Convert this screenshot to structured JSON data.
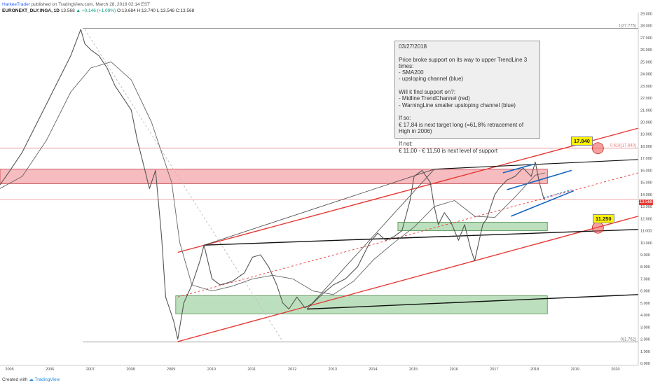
{
  "header": {
    "author": "HarkeeTrader",
    "published": "published on TradingView.com, March 28, 2018 02:14 EST",
    "symbol": "EURONEXT_DLY:INGA, 1D",
    "last": "13.568",
    "change": "▲ +0.146 (+1.09%)",
    "ohlc": "O:13.684 H:13.740 L:13.546 C:13.568"
  },
  "footer": {
    "created_with": "Created with",
    "brand": "TradingView"
  },
  "note": {
    "lines": [
      "03/27/2018",
      "",
      "Price broke support on its way to upper TrendLine 3 times:",
      "- SMA200",
      "- upsloping channel (blue)",
      "",
      "Will it find support on?:",
      "- Midline TrendChannel (red)",
      "- WarningLine smaller upsloping channel (blue)",
      "",
      "If so:",
      "€ 17,84 is next target long (=61,8% retracement of High in 2006)",
      "",
      "If not:",
      "€ 11,00 - € 11,50 is next level of support"
    ]
  },
  "flags": {
    "target_high": "17.840",
    "target_low": "11.250"
  },
  "price_tag": "13.568",
  "fib_labels": {
    "top": "1(27.775)",
    "fib618": "0.618(17.840)",
    "bottom": "0(1.762)"
  },
  "colors": {
    "red_channel": "#e53935",
    "blue_channel": "#1565c0",
    "black_lines": "#111111",
    "red_zone": "#f4a6a9",
    "green_zone": "#a5d6a7",
    "price": "#555555",
    "sma": "#666666"
  },
  "chart_data": {
    "type": "line",
    "title": "",
    "xlabel": "",
    "ylabel": "",
    "x_ticks": [
      "2005",
      "2006",
      "2007",
      "2008",
      "2009",
      "2010",
      "2011",
      "2012",
      "2013",
      "2014",
      "2015",
      "2016",
      "2017",
      "2018",
      "2019",
      "2020"
    ],
    "y_ticks": [
      "29.000",
      "28.000",
      "27.000",
      "26.000",
      "25.000",
      "24.000",
      "23.000",
      "22.000",
      "21.000",
      "20.000",
      "19.000",
      "18.000",
      "17.000",
      "16.000",
      "15.000",
      "14.000",
      "13.000",
      "12.000",
      "11.000",
      "10.000",
      "9.000",
      "8.000",
      "7.000",
      "6.000",
      "5.000",
      "4.000",
      "3.000",
      "2.000",
      "1.000",
      "0.000"
    ],
    "ylim": [
      0,
      29
    ],
    "xlim": [
      2004.75,
      2020.55
    ],
    "price_series": {
      "name": "",
      "x": [
        2004.75,
        2005.0,
        2005.3,
        2005.6,
        2005.9,
        2006.2,
        2006.5,
        2006.75,
        2006.85,
        2007.0,
        2007.2,
        2007.4,
        2007.6,
        2007.8,
        2008.0,
        2008.15,
        2008.3,
        2008.45,
        2008.6,
        2008.75,
        2008.85,
        2008.95,
        2009.05,
        2009.15,
        2009.3,
        2009.5,
        2009.7,
        2009.8,
        2010.0,
        2010.2,
        2010.5,
        2010.8,
        2011.0,
        2011.2,
        2011.4,
        2011.6,
        2011.75,
        2011.9,
        2012.1,
        2012.3,
        2012.5,
        2012.75,
        2013.0,
        2013.3,
        2013.6,
        2013.9,
        2014.1,
        2014.3,
        2014.5,
        2014.7,
        2014.9,
        2015.0,
        2015.2,
        2015.4,
        2015.5,
        2015.6,
        2015.75,
        2015.9,
        2016.0,
        2016.1,
        2016.25,
        2016.4,
        2016.5,
        2016.6,
        2016.7,
        2016.8,
        2016.9,
        2017.0,
        2017.1,
        2017.3,
        2017.5,
        2017.7,
        2017.9,
        2018.0,
        2018.1,
        2018.2,
        2018.24
      ],
      "y": [
        14.8,
        16.0,
        17.5,
        19.5,
        21.5,
        23.5,
        25.5,
        27.7,
        26.5,
        26.0,
        25.5,
        24.5,
        23.0,
        22.0,
        21.0,
        18.5,
        16.5,
        14.5,
        16.0,
        10.5,
        5.5,
        4.5,
        3.5,
        2.0,
        5.0,
        6.5,
        8.5,
        9.8,
        7.0,
        6.5,
        6.8,
        7.5,
        8.8,
        9.0,
        8.0,
        6.5,
        5.0,
        4.5,
        5.5,
        4.6,
        5.0,
        5.8,
        6.5,
        7.0,
        8.0,
        10.0,
        10.8,
        10.2,
        10.5,
        11.0,
        13.5,
        15.5,
        16.0,
        15.0,
        13.0,
        11.5,
        12.5,
        11.8,
        11.0,
        10.2,
        11.5,
        9.5,
        8.5,
        10.0,
        11.5,
        12.0,
        13.0,
        14.0,
        14.5,
        15.2,
        15.5,
        16.2,
        15.5,
        16.7,
        15.0,
        13.8,
        13.568
      ]
    },
    "sma_series": {
      "name": "",
      "x": [
        2004.75,
        2005.3,
        2005.9,
        2006.5,
        2007.0,
        2007.5,
        2008.0,
        2008.5,
        2009.0,
        2009.2,
        2009.5,
        2010.0,
        2010.5,
        2011.0,
        2011.5,
        2012.0,
        2012.5,
        2013.0,
        2013.5,
        2014.0,
        2014.5,
        2015.0,
        2015.5,
        2016.0,
        2016.5,
        2017.0,
        2017.5,
        2018.0,
        2018.24
      ],
      "y": [
        14.5,
        15.5,
        18.5,
        22.5,
        24.5,
        25.0,
        23.5,
        20.0,
        15.0,
        10.0,
        6.5,
        6.0,
        6.4,
        7.0,
        7.3,
        7.0,
        6.0,
        5.7,
        6.8,
        8.6,
        10.0,
        11.3,
        13.0,
        13.5,
        12.2,
        12.1,
        13.8,
        15.6,
        15.8
      ]
    },
    "zones": [
      {
        "name": "resistance",
        "x": [
          2004.75,
          2018.3
        ],
        "y": [
          14.9,
          16.1
        ]
      },
      {
        "name": "support-mid",
        "x": [
          2014.6,
          2018.3
        ],
        "y": [
          11.0,
          11.7
        ]
      },
      {
        "name": "support-low",
        "x": [
          2009.1,
          2018.3
        ],
        "y": [
          4.1,
          5.6
        ]
      }
    ],
    "fib_levels": [
      {
        "label": "1(27.775)",
        "y": 27.775,
        "x": [
          2006.8,
          2020.55
        ]
      },
      {
        "label": "0.618(17.840)",
        "y": 17.84,
        "x": [
          2004.75,
          2020.55
        ]
      },
      {
        "label": "0(1.762)",
        "y": 1.762,
        "x": [
          2006.8,
          2020.55
        ]
      },
      {
        "label": "13.568",
        "y": 13.568,
        "x": [
          2004.75,
          2020.55
        ]
      }
    ],
    "trendlines": {
      "red_upper": [
        [
          2009.15,
          9.2
        ],
        [
          2020.55,
          19.5
        ]
      ],
      "red_lower": [
        [
          2009.15,
          1.8
        ],
        [
          2020.55,
          12.2
        ]
      ],
      "red_mid_dashed": [
        [
          2009.15,
          5.5
        ],
        [
          2020.55,
          15.8
        ]
      ],
      "black_range": [
        [
          2009.8,
          9.8
        ],
        [
          2020.55,
          11.1
        ]
      ],
      "black_upper": [
        [
          2015.5,
          16.1
        ],
        [
          2020.55,
          16.9
        ]
      ],
      "black_support": [
        [
          2012.35,
          4.5
        ],
        [
          2020.55,
          5.7
        ]
      ],
      "black_rise_low": [
        [
          2012.35,
          4.5
        ],
        [
          2015.5,
          16.1
        ]
      ],
      "black_rise_high": [
        [
          2009.8,
          9.8
        ],
        [
          2015.5,
          16.1
        ]
      ],
      "gray_dashed_diag": [
        [
          2006.85,
          27.7
        ],
        [
          2011.75,
          1.8
        ]
      ],
      "blue_top": [
        [
          2017.2,
          15.8
        ],
        [
          2017.95,
          16.5
        ]
      ],
      "blue_mid": [
        [
          2017.3,
          14.4
        ],
        [
          2018.9,
          16.0
        ]
      ],
      "blue_bottom": [
        [
          2017.4,
          12.2
        ],
        [
          2018.95,
          14.3
        ]
      ],
      "blue_extension": [
        [
          2018.2,
          13.7
        ],
        [
          2018.9,
          14.4
        ]
      ]
    },
    "targets": [
      {
        "label": "17.840",
        "x": 2019.55,
        "y": 17.84
      },
      {
        "label": "11.250",
        "x": 2019.55,
        "y": 11.25
      }
    ],
    "grid": false,
    "legend": "none"
  }
}
